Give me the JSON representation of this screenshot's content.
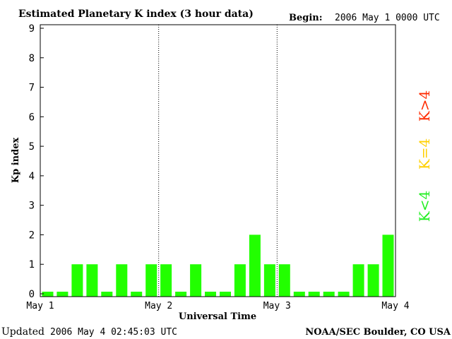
{
  "header": {
    "title": "Estimated Planetary K index (3 hour data)",
    "begin_label": "Begin:",
    "begin_value": "2006 May 1 0000 UTC"
  },
  "footer": {
    "updated_label": "Updated",
    "updated_value": "2006 May  4 02:45:03 UTC",
    "source": "NOAA/SEC Boulder, CO USA"
  },
  "legend": {
    "above": {
      "text": "K>4",
      "color": "#ff2a00"
    },
    "equal": {
      "text": "K=4",
      "color": "#ffd000"
    },
    "below": {
      "text": "K<4",
      "color": "#22ee22"
    }
  },
  "chart_data": {
    "type": "bar",
    "title": "Estimated Planetary K index (3 hour data)",
    "xlabel": "Universal Time",
    "ylabel": "Kp index",
    "ylim": [
      0,
      9
    ],
    "yticks": [
      "0",
      "1",
      "2",
      "3",
      "4",
      "5",
      "6",
      "7",
      "8",
      "9"
    ],
    "xticks": [
      "May 1",
      "May 2",
      "May 3",
      "May 4"
    ],
    "day_dividers": true,
    "bars_per_day": 8,
    "bar_color": "#22ff00",
    "values": [
      0,
      0,
      1,
      1,
      0,
      1,
      0,
      1,
      1,
      0,
      1,
      0,
      0,
      1,
      2,
      1,
      1,
      0,
      0,
      0,
      0,
      1,
      1,
      2
    ]
  }
}
